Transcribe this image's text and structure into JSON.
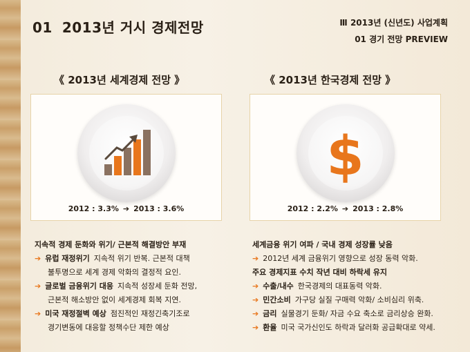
{
  "page": {
    "number": "01",
    "title": "2013년 거시 경제전망",
    "section_title": "Ⅲ  2013년 (신년도) 사업계획",
    "section_sub": "01  경기 전망 PREVIEW"
  },
  "world": {
    "heading": "《  2013년 세계경제 전망  》",
    "caption_from": "2012 : 3.3%",
    "caption_to": "2013 : 3.6%",
    "icon": "growth-bar-chart-icon",
    "lines": [
      {
        "type": "head",
        "text": "지속적 경제 둔화와 위기/ 근본적 해결방안 부재"
      },
      {
        "type": "bullet",
        "kw": "유럽 재정위기",
        "text": "지속적 위기 반복. 근본적 대책"
      },
      {
        "type": "cont",
        "text": "불투명으로 세계 경제 악화의 결정적 요인."
      },
      {
        "type": "bullet",
        "kw": "글로벌 금융위기 대응",
        "text": "지속적 성장세 둔화 전망,"
      },
      {
        "type": "cont",
        "text": "근본적 해소방안 없이 세계경제 회복 지연."
      },
      {
        "type": "bullet",
        "kw": "미국 재정절벽 예상",
        "text": "점진적인 재정긴축기조로"
      },
      {
        "type": "cont",
        "text": "경기변동에 대응할 정책수단 제한 예상"
      }
    ]
  },
  "korea": {
    "heading": "《  2013년 한국경제 전망  》",
    "caption_from": "2012 : 2.2%",
    "caption_to": "2013 : 2.8%",
    "icon": "dollar-icon",
    "dollar_glyph": "$",
    "lines": [
      {
        "type": "head",
        "text": "세계금융 위기 여파 / 국내 경제 성장률 낮음"
      },
      {
        "type": "bullet",
        "kw": "",
        "text": "2012년 세계 금융위기 영향으로 성장 동력 악화."
      },
      {
        "type": "head",
        "text": "주요 경제지표 수치 작년 대비 하락세 유지"
      },
      {
        "type": "bullet",
        "kw": "수출/내수",
        "text": "한국경제의 대표동력 악화."
      },
      {
        "type": "bullet",
        "kw": "민간소비",
        "text": "가구당 실질 구매력 악화/ 소비심리 위축."
      },
      {
        "type": "bullet",
        "kw": "금리",
        "text": "실물경기 둔화/ 자금 수요 축소로 금리상승 완화."
      },
      {
        "type": "bullet",
        "kw": "환율",
        "text": "미국 국가신인도 하락과 달러화 공급확대로 약세."
      }
    ]
  },
  "colors": {
    "accent": "#e8761c",
    "text": "#2a2016",
    "card_border": "#e7d3a8",
    "bar_brown": "#8a7160"
  }
}
